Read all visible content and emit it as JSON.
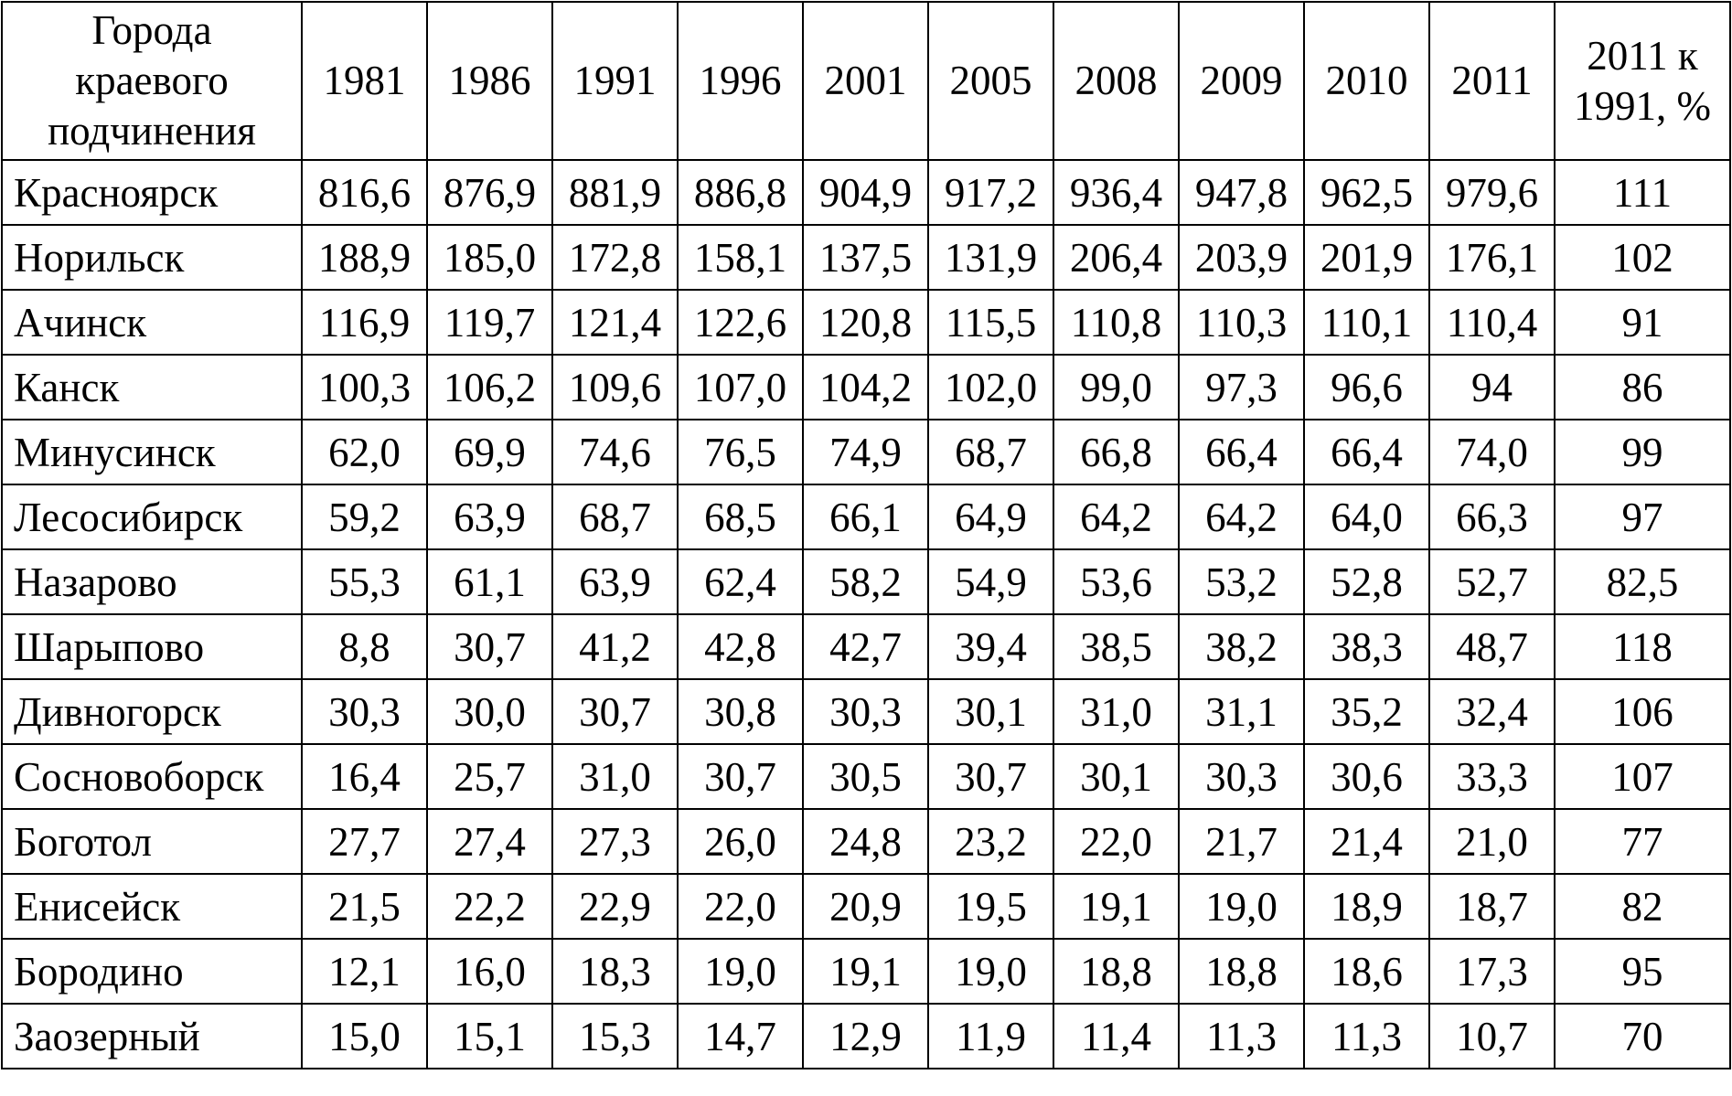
{
  "table": {
    "header": [
      "Города\nкраевого\nподчинения",
      "1981",
      "1986",
      "1991",
      "1996",
      "2001",
      "2005",
      "2008",
      "2009",
      "2010",
      "2011",
      "2011 к\n1991, %"
    ],
    "rows": [
      [
        "Красноярск",
        "816,6",
        "876,9",
        "881,9",
        "886,8",
        "904,9",
        "917,2",
        "936,4",
        "947,8",
        "962,5",
        "979,6",
        "111"
      ],
      [
        "Норильск",
        "188,9",
        "185,0",
        "172,8",
        "158,1",
        "137,5",
        "131,9",
        "206,4",
        "203,9",
        "201,9",
        "176,1",
        "102"
      ],
      [
        "Ачинск",
        "116,9",
        "119,7",
        "121,4",
        "122,6",
        "120,8",
        "115,5",
        "110,8",
        "110,3",
        "110,1",
        "110,4",
        "91"
      ],
      [
        "Канск",
        "100,3",
        "106,2",
        "109,6",
        "107,0",
        "104,2",
        "102,0",
        "99,0",
        "97,3",
        "96,6",
        "94",
        "86"
      ],
      [
        "Минусинск",
        "62,0",
        "69,9",
        "74,6",
        "76,5",
        "74,9",
        "68,7",
        "66,8",
        "66,4",
        "66,4",
        "74,0",
        "99"
      ],
      [
        "Лесосибирск",
        "59,2",
        "63,9",
        "68,7",
        "68,5",
        "66,1",
        "64,9",
        "64,2",
        "64,2",
        "64,0",
        "66,3",
        "97"
      ],
      [
        "Назарово",
        "55,3",
        "61,1",
        "63,9",
        "62,4",
        "58,2",
        "54,9",
        "53,6",
        "53,2",
        "52,8",
        "52,7",
        "82,5"
      ],
      [
        "Шарыпово",
        "8,8",
        "30,7",
        "41,2",
        "42,8",
        "42,7",
        "39,4",
        "38,5",
        "38,2",
        "38,3",
        "48,7",
        "118"
      ],
      [
        "Дивногорск",
        "30,3",
        "30,0",
        "30,7",
        "30,8",
        "30,3",
        "30,1",
        "31,0",
        "31,1",
        "35,2",
        "32,4",
        "106"
      ],
      [
        "Сосновоборск",
        "16,4",
        "25,7",
        "31,0",
        "30,7",
        "30,5",
        "30,7",
        "30,1",
        "30,3",
        "30,6",
        "33,3",
        "107"
      ],
      [
        "Боготол",
        "27,7",
        "27,4",
        "27,3",
        "26,0",
        "24,8",
        "23,2",
        "22,0",
        "21,7",
        "21,4",
        "21,0",
        "77"
      ],
      [
        "Енисейск",
        "21,5",
        "22,2",
        "22,9",
        "22,0",
        "20,9",
        "19,5",
        "19,1",
        "19,0",
        "18,9",
        "18,7",
        "82"
      ],
      [
        "Бородино",
        "12,1",
        "16,0",
        "18,3",
        "19,0",
        "19,1",
        "19,0",
        "18,8",
        "18,8",
        "18,6",
        "17,3",
        "95"
      ],
      [
        "Заозерный",
        "15,0",
        "15,1",
        "15,3",
        "14,7",
        "12,9",
        "11,9",
        "11,4",
        "11,3",
        "11,3",
        "10,7",
        "70"
      ]
    ]
  }
}
